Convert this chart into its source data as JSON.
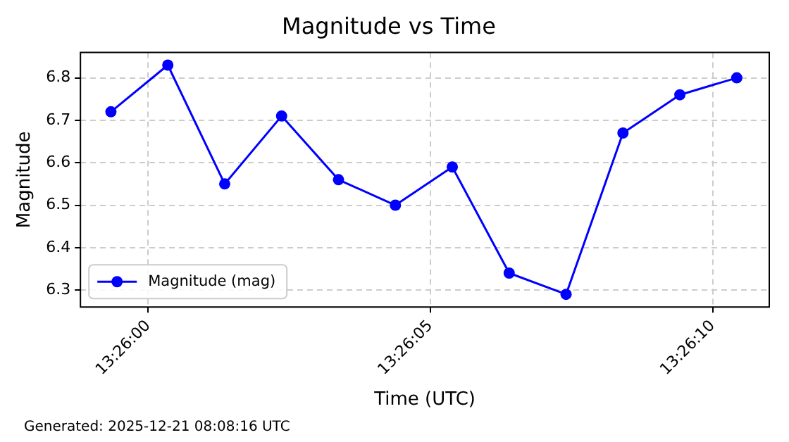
{
  "chart_data": {
    "type": "line",
    "title": "Magnitude vs Time",
    "xlabel": "Time (UTC)",
    "ylabel": "Magnitude",
    "x": [
      13.43315,
      13.43343,
      13.43371,
      13.43399,
      13.43427,
      13.43455,
      13.43483,
      13.43511,
      13.43539,
      13.43567,
      13.43595,
      13.43623
    ],
    "series": [
      {
        "name": "Magnitude (mag)",
        "color": "#0000ff",
        "values": [
          6.72,
          6.83,
          6.55,
          6.71,
          6.56,
          6.5,
          6.59,
          6.34,
          6.29,
          6.67,
          6.76,
          6.8
        ]
      }
    ],
    "xlim": [
      13.433,
      13.43639
    ],
    "xticks": [
      {
        "value": 13.433333,
        "label": "13:26:00"
      },
      {
        "value": 13.434722,
        "label": "13:26:05"
      },
      {
        "value": 13.436111,
        "label": "13:26:10"
      }
    ],
    "ylim": [
      6.26,
      6.86
    ],
    "yticks": [
      6.3,
      6.4,
      6.5,
      6.6,
      6.7,
      6.8
    ],
    "grid": true,
    "legend": "bottom left",
    "marker": "circle",
    "line_style": "solid",
    "annotations": [
      "Generated: 2025-12-21 08:08:16 UTC"
    ]
  }
}
